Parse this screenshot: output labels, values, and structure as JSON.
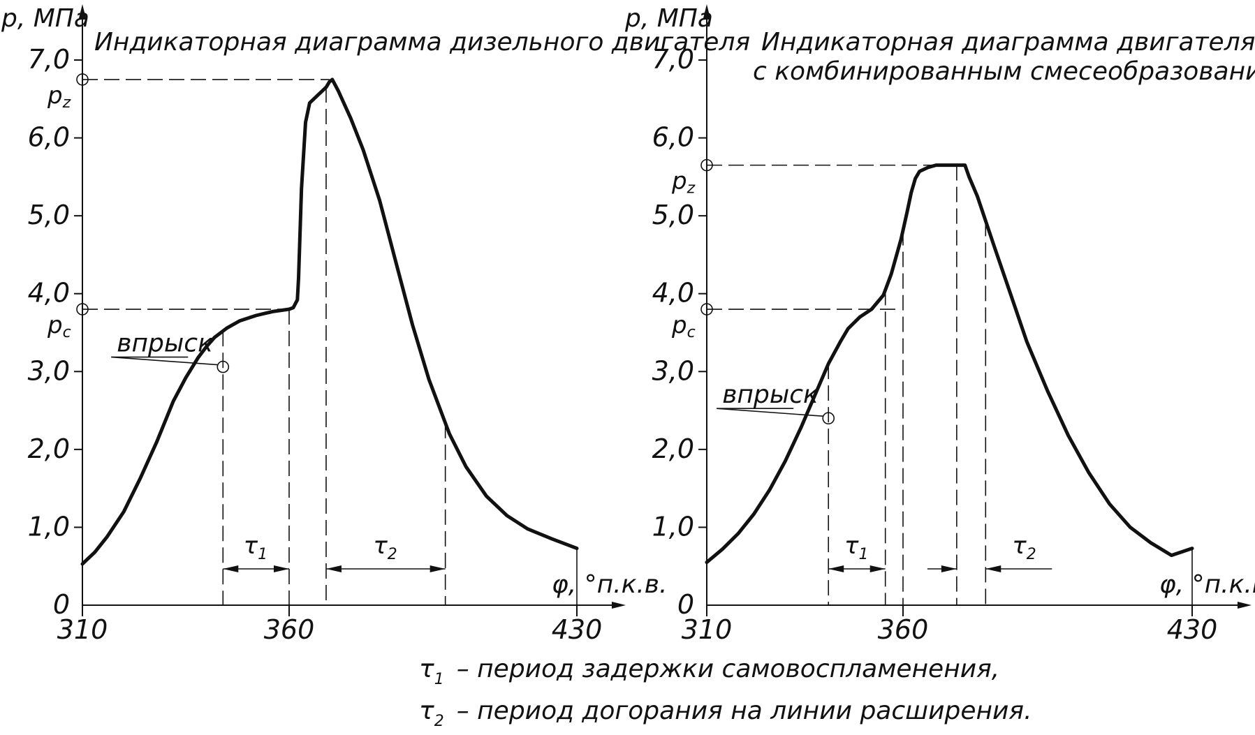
{
  "chart_data": [
    {
      "type": "line",
      "title": "Индикаторная диаграмма дизельного двигателя",
      "ylabel": "p, МПа",
      "xlabel": "φ, °п.к.в.",
      "ylim": [
        0,
        7.0
      ],
      "y_ticks": [
        "0",
        "1,0",
        "2,0",
        "3,0",
        "4,0",
        "5,0",
        "6,0",
        "7,0"
      ],
      "x_ticks": [
        "310",
        "360",
        "430"
      ],
      "x_tick_values": [
        310,
        360,
        430
      ],
      "series": [
        {
          "x": [
            310,
            313,
            316,
            320,
            324,
            328,
            332,
            335,
            338,
            340,
            342,
            345,
            348,
            352,
            356,
            360,
            361,
            362,
            362.3,
            363,
            364,
            365,
            367,
            369,
            369.8,
            370.5,
            372,
            375,
            378,
            382,
            386,
            390,
            394,
            399,
            403,
            408,
            413,
            418,
            424,
            430
          ],
          "y": [
            0.53,
            0.68,
            0.88,
            1.2,
            1.63,
            2.1,
            2.62,
            2.92,
            3.18,
            3.32,
            3.44,
            3.56,
            3.65,
            3.72,
            3.77,
            3.8,
            3.82,
            3.92,
            4.2,
            5.35,
            6.2,
            6.45,
            6.55,
            6.65,
            6.72,
            6.75,
            6.6,
            6.25,
            5.85,
            5.2,
            4.4,
            3.6,
            2.9,
            2.2,
            1.78,
            1.4,
            1.15,
            0.98,
            0.85,
            0.73
          ]
        }
      ],
      "annotations": {
        "pz_label": "p",
        "pz_sub": "z",
        "pz_value": 6.75,
        "pc_label": "p",
        "pc_sub": "c",
        "pc_value": 3.8,
        "injection_label": "впрыск",
        "injection_x": 344,
        "injection_y": 3.06,
        "tau1_label": "τ",
        "tau1_sub": "1",
        "tau1_range": [
          344,
          360
        ],
        "tau2_label": "τ",
        "tau2_sub": "2",
        "tau2_range": [
          369,
          398
        ]
      }
    },
    {
      "type": "line",
      "title": "Индикаторная диаграмма двигателя",
      "subtitle": "с комбинированным смесеобразованием",
      "ylabel": "p, МПа",
      "xlabel": "φ, °п.к.в.",
      "ylim": [
        0,
        7.0
      ],
      "y_ticks": [
        "0",
        "1,0",
        "2,0",
        "3,0",
        "4,0",
        "5,0",
        "6,0",
        "7,0"
      ],
      "x_ticks": [
        "310",
        "360",
        "430"
      ],
      "x_tick_values": [
        310,
        360,
        430
      ],
      "series": [
        {
          "x": [
            310,
            314,
            318,
            322,
            326,
            330,
            334,
            338,
            341,
            344,
            346,
            349,
            352,
            355,
            357,
            359.5,
            361,
            362,
            363,
            364,
            366,
            368,
            372,
            375,
            376,
            378,
            382,
            386,
            390,
            395,
            400,
            405,
            410,
            415,
            420,
            425,
            430
          ],
          "y": [
            0.55,
            0.72,
            0.92,
            1.17,
            1.48,
            1.85,
            2.28,
            2.75,
            3.1,
            3.38,
            3.55,
            3.7,
            3.8,
            3.98,
            4.25,
            4.7,
            5.05,
            5.3,
            5.48,
            5.57,
            5.62,
            5.65,
            5.65,
            5.65,
            5.5,
            5.25,
            4.62,
            4.0,
            3.38,
            2.75,
            2.18,
            1.7,
            1.3,
            1.0,
            0.8,
            0.64,
            0.73
          ]
        }
      ],
      "annotations": {
        "pz_label": "p",
        "pz_sub": "z",
        "pz_value": 5.65,
        "pc_label": "p",
        "pc_sub": "c",
        "pc_value": 3.8,
        "injection_label": "впрыск",
        "injection_x": 341,
        "injection_y": 2.4,
        "tau1_label": "τ",
        "tau1_sub": "1",
        "tau1_range": [
          341,
          355.5
        ],
        "tau2_label": "τ",
        "tau2_sub": "2",
        "tau2_range": [
          373,
          380
        ]
      }
    }
  ],
  "legend": {
    "line1_symbol": "τ",
    "line1_sub": "1",
    "line1_text": "– период задержки самовоспламенения,",
    "line2_symbol": "τ",
    "line2_sub": "2",
    "line2_text": "– период догорания на линии расширения."
  }
}
